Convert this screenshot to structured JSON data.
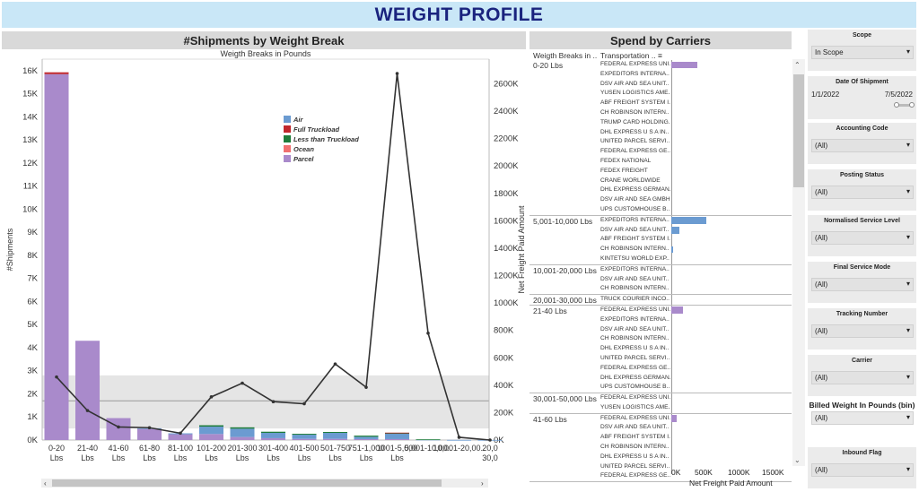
{
  "page_title": "WEIGHT PROFILE",
  "left_chart": {
    "heading": "#Shipments by Weight Break",
    "subtitle": "Weigth Breaks in Pounds",
    "ylabel_left": "#Shipments",
    "ylabel_right": "Net Freight Paid Amount",
    "left_ticks": [
      "0K",
      "1K",
      "2K",
      "3K",
      "4K",
      "5K",
      "6K",
      "7K",
      "8K",
      "9K",
      "10K",
      "11K",
      "12K",
      "13K",
      "14K",
      "15K",
      "16K"
    ],
    "right_ticks": [
      "0K",
      "200K",
      "400K",
      "600K",
      "800K",
      "1000K",
      "1200K",
      "1400K",
      "1600K",
      "1800K",
      "2000K",
      "2200K",
      "2400K",
      "2600K"
    ],
    "legend": [
      {
        "name": "Air",
        "color": "#6b9bd1"
      },
      {
        "name": "Full Truckload",
        "color": "#c0272d"
      },
      {
        "name": "Less than Truckload",
        "color": "#1e7c3b"
      },
      {
        "name": "Ocean",
        "color": "#f07070"
      },
      {
        "name": "Parcel",
        "color": "#a98acb"
      }
    ]
  },
  "chart_data": {
    "type": "bar",
    "categories": [
      "0-20 Lbs",
      "21-40 Lbs",
      "41-60 Lbs",
      "61-80 Lbs",
      "81-100 Lbs",
      "101-200 Lbs",
      "201-300 Lbs",
      "301-400 Lbs",
      "401-500 Lbs",
      "501-750 Lbs",
      "751-1,000 Lbs",
      "1001-5,000 Lbs",
      "5,001-10,00..",
      "10,001-20,00..",
      "20,0 30,0"
    ],
    "series": [
      {
        "name": "Parcel",
        "values": [
          15850,
          4300,
          950,
          480,
          250,
          260,
          130,
          80,
          50,
          50,
          40,
          40,
          0,
          0,
          0
        ]
      },
      {
        "name": "Air",
        "values": [
          0,
          0,
          0,
          30,
          40,
          320,
          360,
          230,
          180,
          260,
          100,
          230,
          20,
          5,
          5
        ]
      },
      {
        "name": "Less than Truckload",
        "values": [
          0,
          0,
          0,
          0,
          0,
          60,
          60,
          50,
          40,
          40,
          50,
          30,
          10,
          0,
          0
        ]
      },
      {
        "name": "Full Truckload",
        "values": [
          80,
          0,
          0,
          0,
          0,
          0,
          0,
          0,
          0,
          0,
          0,
          20,
          0,
          0,
          0
        ]
      }
    ],
    "line": {
      "name": "Net Freight Paid Amount",
      "values": [
        460000,
        215000,
        95000,
        90000,
        50000,
        315000,
        415000,
        280000,
        265000,
        555000,
        385000,
        2675000,
        780000,
        20000,
        0
      ]
    },
    "reference_band": [
      500,
      2800
    ],
    "reference_line": 1700,
    "ylim_left": [
      0,
      16500
    ],
    "ylim_right": [
      0,
      2780000
    ]
  },
  "spend_chart": {
    "heading": "Spend by Carriers",
    "col_weight": "Weigth Breaks in ..",
    "col_transport": "Transportation ..",
    "x_ticks": [
      "0K",
      "500K",
      "1000K",
      "1500K"
    ],
    "xlabel": "Net Freight Paid Amount",
    "groups": [
      {
        "name": "0-20 Lbs",
        "rows": [
          {
            "carrier": "FEDERAL EXPRESS UNI..",
            "value": 420000,
            "color": "#a98acb"
          },
          {
            "carrier": "EXPEDITORS INTERNA..",
            "value": 0
          },
          {
            "carrier": "DSV AIR AND SEA UNIT..",
            "value": 0
          },
          {
            "carrier": "YUSEN LOGISTICS AME..",
            "value": 0
          },
          {
            "carrier": "ABF FREIGHT SYSTEM I..",
            "value": 0
          },
          {
            "carrier": "CH ROBINSON INTERN..",
            "value": 0
          },
          {
            "carrier": "TRUMP CARD HOLDING..",
            "value": 0
          },
          {
            "carrier": "DHL EXPRESS U S A IN..",
            "value": 0
          },
          {
            "carrier": "UNITED PARCEL SERVI..",
            "value": 0
          },
          {
            "carrier": "FEDERAL EXPRESS GE..",
            "value": 0
          },
          {
            "carrier": "FEDEX NATIONAL",
            "value": 0
          },
          {
            "carrier": "FEDEX FREIGHT",
            "value": 0
          },
          {
            "carrier": "CRANE WORLDWIDE",
            "value": 0
          },
          {
            "carrier": "DHL EXPRESS GERMAN..",
            "value": 0
          },
          {
            "carrier": "DSV AIR AND SEA GMBH",
            "value": 0
          },
          {
            "carrier": "UPS CUSTOMHOUSE B..",
            "value": 0
          }
        ]
      },
      {
        "name": "5,001-10,000 Lbs",
        "rows": [
          {
            "carrier": "EXPEDITORS INTERNA..",
            "value": 560000,
            "color": "#6b9bd1"
          },
          {
            "carrier": "DSV AIR AND SEA UNIT..",
            "value": 130000,
            "color": "#6b9bd1"
          },
          {
            "carrier": "ABF FREIGHT SYSTEM I..",
            "value": 0
          },
          {
            "carrier": "CH ROBINSON INTERN..",
            "value": 12000,
            "color": "#6b9bd1"
          },
          {
            "carrier": "KINTETSU WORLD EXP..",
            "value": 0
          }
        ]
      },
      {
        "name": "10,001-20,000 Lbs",
        "rows": [
          {
            "carrier": "EXPEDITORS INTERNA..",
            "value": 0
          },
          {
            "carrier": "DSV AIR AND SEA UNIT..",
            "value": 0
          },
          {
            "carrier": "CH ROBINSON INTERN..",
            "value": 0
          }
        ]
      },
      {
        "name": "20,001-30,000 Lbs",
        "rows": [
          {
            "carrier": "TRUCK COURIER INCO..",
            "value": 0
          }
        ]
      },
      {
        "name": "21-40 Lbs",
        "rows": [
          {
            "carrier": "FEDERAL EXPRESS UNI..",
            "value": 190000,
            "color": "#a98acb"
          },
          {
            "carrier": "EXPEDITORS INTERNA..",
            "value": 0
          },
          {
            "carrier": "DSV AIR AND SEA UNIT..",
            "value": 0
          },
          {
            "carrier": "CH ROBINSON INTERN..",
            "value": 0
          },
          {
            "carrier": "DHL EXPRESS U S A IN..",
            "value": 0
          },
          {
            "carrier": "UNITED PARCEL SERVI..",
            "value": 0
          },
          {
            "carrier": "FEDERAL EXPRESS GE..",
            "value": 0
          },
          {
            "carrier": "DHL EXPRESS GERMAN..",
            "value": 0
          },
          {
            "carrier": "UPS CUSTOMHOUSE B..",
            "value": 0
          }
        ]
      },
      {
        "name": "30,001-50,000 Lbs",
        "rows": [
          {
            "carrier": "FEDERAL EXPRESS UNI..",
            "value": 0
          },
          {
            "carrier": "YUSEN LOGISTICS AME..",
            "value": 0
          }
        ]
      },
      {
        "name": "41-60 Lbs",
        "rows": [
          {
            "carrier": "FEDERAL EXPRESS UNI..",
            "value": 90000,
            "color": "#a98acb"
          },
          {
            "carrier": "DSV AIR AND SEA UNIT..",
            "value": 0
          },
          {
            "carrier": "ABF FREIGHT SYSTEM I..",
            "value": 0
          },
          {
            "carrier": "CH ROBINSON INTERN..",
            "value": 0
          },
          {
            "carrier": "DHL EXPRESS U S A IN..",
            "value": 0
          },
          {
            "carrier": "UNITED PARCEL SERVI..",
            "value": 0
          },
          {
            "carrier": "FEDERAL EXPRESS GE..",
            "value": 0
          }
        ]
      }
    ]
  },
  "filters": {
    "scope": {
      "title": "Scope",
      "value": "In Scope"
    },
    "date": {
      "title": "Date Of Shipment",
      "start": "1/1/2022",
      "end": "7/5/2022"
    },
    "accounting": {
      "title": "Accounting Code",
      "value": "(All)"
    },
    "posting": {
      "title": "Posting Status",
      "value": "(All)"
    },
    "normalised": {
      "title": "Normalised Service Level",
      "value": "(All)"
    },
    "final_mode": {
      "title": "Final Service Mode",
      "value": "(All)"
    },
    "tracking": {
      "title": "Tracking Number",
      "value": "(All)"
    },
    "carrier": {
      "title": "Carrier",
      "value": "(All)"
    },
    "billed": {
      "title": "Billed Weight In Pounds (bin)",
      "value": "(All)"
    },
    "inbound": {
      "title": "Inbound Flag",
      "value": "(All)"
    }
  },
  "icons": {
    "dropdown": "triangle-down-icon",
    "sort": "sort-icon",
    "scroll_up": "chevron-up-icon",
    "scroll_down": "chevron-down-icon",
    "scroll_left": "chevron-left-icon",
    "scroll_right": "chevron-right-icon"
  }
}
